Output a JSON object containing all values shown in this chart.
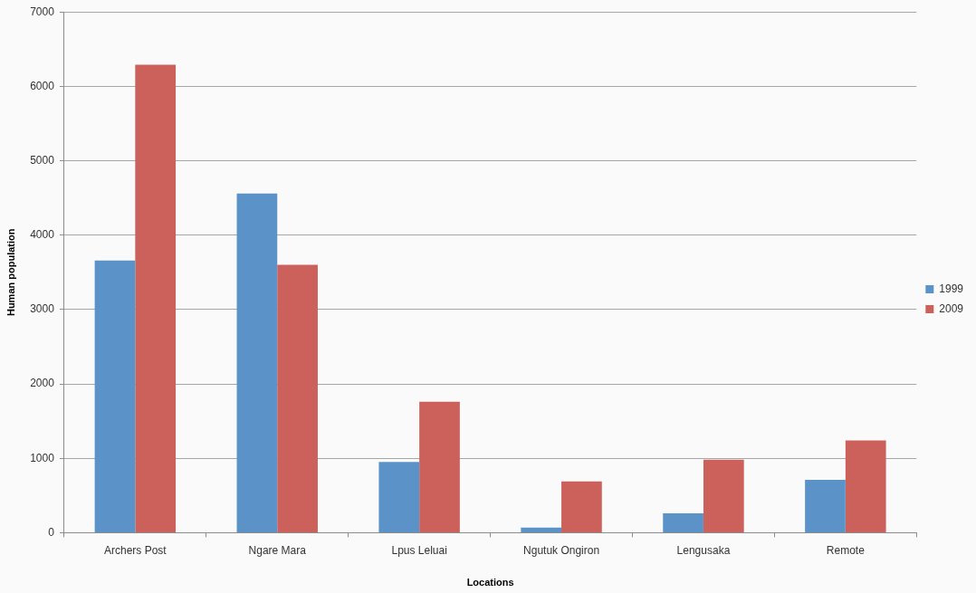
{
  "chart_data": {
    "type": "bar",
    "xlabel": "Locations",
    "ylabel": "Human population",
    "categories": [
      "Archers Post",
      "Ngare Mara",
      "Lpus Leluai",
      "Ngutuk Ongiron",
      "Lengusaka",
      "Remote"
    ],
    "series": [
      {
        "name": "1999",
        "color": "#5b93c9",
        "values": [
          3660,
          4560,
          950,
          70,
          260,
          710
        ]
      },
      {
        "name": "2009",
        "color": "#cc605b",
        "values": [
          6290,
          3600,
          1760,
          690,
          980,
          1240
        ]
      }
    ],
    "ylim": [
      0,
      7000
    ],
    "yticks": [
      0,
      1000,
      2000,
      3000,
      4000,
      5000,
      6000,
      7000
    ],
    "grid": "y",
    "legend": "right"
  }
}
